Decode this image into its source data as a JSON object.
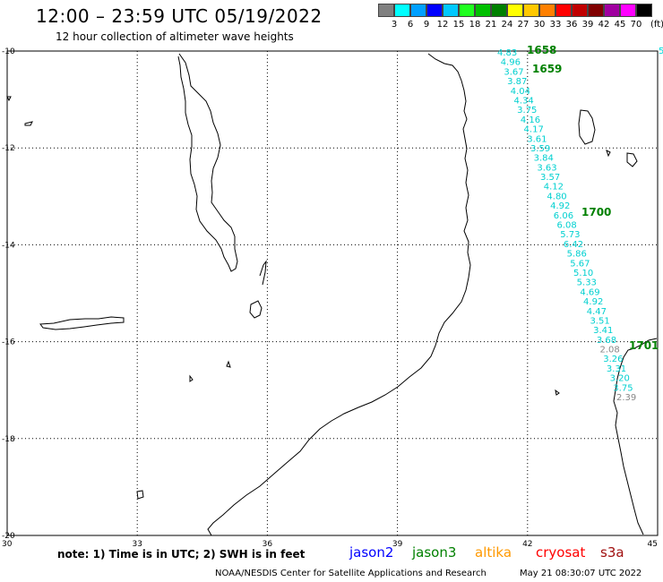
{
  "header": {
    "title": "12:00 – 23:59 UTC 05/19/2022",
    "subtitle": "12 hour collection of altimeter wave heights"
  },
  "legend": {
    "colors": [
      "#808080",
      "#00ffff",
      "#00a0ff",
      "#0000ff",
      "#00c8ff",
      "#20ff20",
      "#00c000",
      "#008000",
      "#ffff00",
      "#ffc800",
      "#ff8000",
      "#ff0000",
      "#c00000",
      "#800000",
      "#a000a0",
      "#ff00ff",
      "#000000"
    ],
    "ticks": [
      "3",
      "6",
      "9",
      "12",
      "15",
      "18",
      "21",
      "24",
      "27",
      "30",
      "33",
      "36",
      "39",
      "42",
      "45",
      "70"
    ],
    "unit": "(ft)"
  },
  "axes": {
    "y_labels": [
      "-10",
      "-12",
      "-14",
      "-16",
      "-18",
      "-20"
    ],
    "x_labels": [
      "30",
      "33",
      "36",
      "39",
      "42",
      "45"
    ]
  },
  "track": {
    "values": [
      "4.83",
      "4.96",
      "3.67",
      "3.87",
      "4.04",
      "4.34",
      "3.75",
      "4.16",
      "4.17",
      "3.61",
      "3.59",
      "3.84",
      "3.63",
      "3.57",
      "4.12",
      "4.80",
      "4.92",
      "6.06",
      "6.08",
      "5.73",
      "6.42",
      "5.86",
      "5.67",
      "5.10",
      "5.33",
      "4.69",
      "4.92",
      "4.47",
      "3.51",
      "3.41",
      "3.68",
      "2.08",
      "3.26",
      "3.31",
      "3.20",
      "3.75",
      "2.39"
    ],
    "times": [
      "1658",
      "1659",
      "1700",
      "1701"
    ],
    "edge_value": "5"
  },
  "footer": {
    "note": "note:  1) Time is in UTC;  2) SWH is in feet",
    "satellites": [
      {
        "name": "jason2",
        "color": "#0000ff"
      },
      {
        "name": "jason3",
        "color": "#008000"
      },
      {
        "name": "altika",
        "color": "#ff9900"
      },
      {
        "name": "cryosat",
        "color": "#ff0000"
      },
      {
        "name": "s3a",
        "color": "#a01010"
      }
    ],
    "credit": "NOAA/NESDIS Center for Satellite Applications and Research",
    "timestamp": "May 21 08:30:07 UTC 2022"
  }
}
